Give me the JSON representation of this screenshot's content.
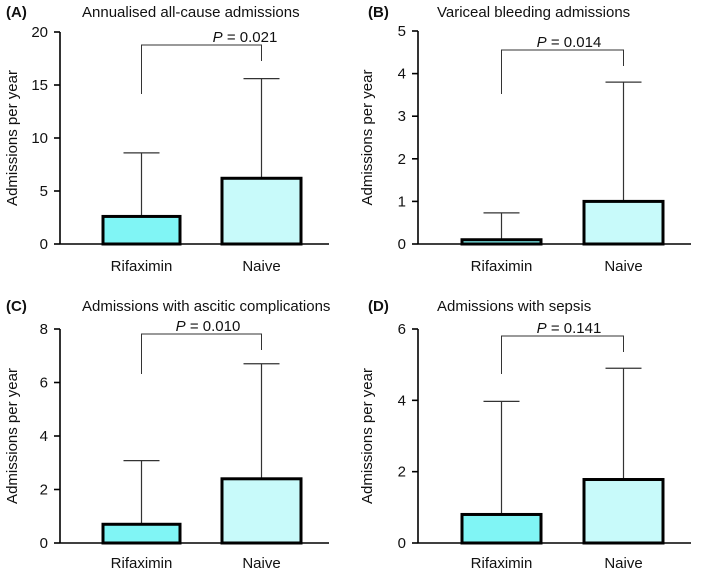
{
  "colors": {
    "rifaximin_fill": "#80F5F5",
    "naive_fill": "#C8FAFA",
    "line": "#000000"
  },
  "chart_data": [
    {
      "panel": "(A)",
      "type": "bar",
      "title": "Annualised all-cause admissions",
      "ylabel": "Admissions per year",
      "xlabel": "",
      "categories": [
        "Rifaximin",
        "Naive"
      ],
      "values": [
        2.6,
        6.2
      ],
      "error_upper": [
        8.6,
        15.6
      ],
      "ylim": [
        0,
        20
      ],
      "yticks": [
        0,
        5,
        10,
        15,
        20
      ],
      "p_prefix": "P",
      "p_value": " = 0.021"
    },
    {
      "panel": "(B)",
      "type": "bar",
      "title": "Variceal bleeding admissions",
      "ylabel": "Admissions per year",
      "xlabel": "",
      "categories": [
        "Rifaximin",
        "Naive"
      ],
      "values": [
        0.1,
        1.0
      ],
      "error_upper": [
        0.73,
        3.8
      ],
      "ylim": [
        0,
        5
      ],
      "yticks": [
        0,
        1,
        2,
        3,
        4,
        5
      ],
      "p_prefix": "P",
      "p_value": " = 0.014"
    },
    {
      "panel": "(C)",
      "type": "bar",
      "title": "Admissions with ascitic complications",
      "ylabel": "Admissions per year",
      "xlabel": "",
      "categories": [
        "Rifaximin",
        "Naive"
      ],
      "values": [
        0.7,
        2.4
      ],
      "error_upper": [
        3.08,
        6.7
      ],
      "ylim": [
        0,
        8
      ],
      "yticks": [
        0,
        2,
        4,
        6,
        8
      ],
      "p_prefix": "P",
      "p_value": " = 0.010"
    },
    {
      "panel": "(D)",
      "type": "bar",
      "title": "Admissions with sepsis",
      "ylabel": "Admissions per year",
      "xlabel": "",
      "categories": [
        "Rifaximin",
        "Naive"
      ],
      "values": [
        0.8,
        1.78
      ],
      "error_upper": [
        3.97,
        4.9
      ],
      "ylim": [
        0,
        6
      ],
      "yticks": [
        0,
        2,
        4,
        6
      ],
      "p_prefix": "P",
      "p_value": " = 0.141"
    }
  ]
}
